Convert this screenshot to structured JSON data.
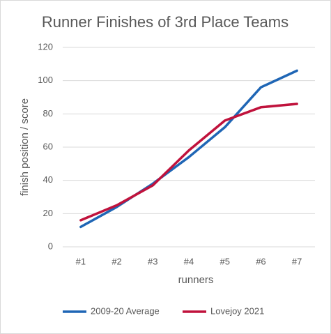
{
  "chart_data": {
    "type": "line",
    "title": "Runner Finishes of 3rd Place Teams",
    "x_label": "runners",
    "y_label": "finish position / score",
    "categories": [
      "#1",
      "#2",
      "#3",
      "#4",
      "#5",
      "#6",
      "#7"
    ],
    "series": [
      {
        "name": "2009-20 Average",
        "color": "#1f66b5",
        "values": [
          12,
          24,
          38,
          54,
          72,
          96,
          106
        ]
      },
      {
        "name": "Lovejoy 2021",
        "color": "#c0123c",
        "values": [
          16,
          25,
          37,
          58,
          76,
          84,
          86
        ]
      }
    ],
    "ylim": [
      0,
      120
    ],
    "yticks": [
      0,
      20,
      40,
      60,
      80,
      100,
      120
    ],
    "grid": true,
    "legend": "bottom"
  }
}
